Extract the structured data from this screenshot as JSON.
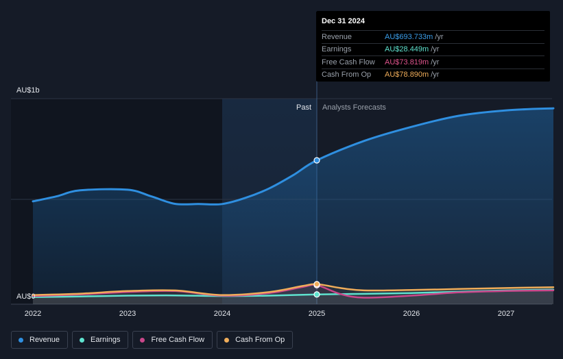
{
  "tooltip": {
    "date": "Dec 31 2024",
    "rows": [
      {
        "label": "Revenue",
        "value": "AU$693.733m",
        "unit": "/yr",
        "color": "#3b9eea"
      },
      {
        "label": "Earnings",
        "value": "AU$28.449m",
        "unit": "/yr",
        "color": "#5fe3cf"
      },
      {
        "label": "Free Cash Flow",
        "value": "AU$73.819m",
        "unit": "/yr",
        "color": "#e0548d"
      },
      {
        "label": "Cash From Op",
        "value": "AU$78.890m",
        "unit": "/yr",
        "color": "#f0ad5a"
      }
    ]
  },
  "regions": {
    "past": "Past",
    "forecast": "Analysts Forecasts"
  },
  "legend": [
    {
      "label": "Revenue",
      "color": "#2f8fe0"
    },
    {
      "label": "Earnings",
      "color": "#5fe3cf"
    },
    {
      "label": "Free Cash Flow",
      "color": "#c9478a"
    },
    {
      "label": "Cash From Op",
      "color": "#f0ad5a"
    }
  ],
  "chart_data": {
    "type": "line",
    "x_ticks": [
      "2022",
      "2023",
      "2024",
      "2025",
      "2026",
      "2027"
    ],
    "y_ticks": [
      "AU$0",
      "AU$1b"
    ],
    "ylim": [
      0,
      1000
    ],
    "xlim": [
      2022.0,
      2027.5
    ],
    "past_end": 2025.0,
    "shaded_start": 2024.0,
    "series": [
      {
        "name": "Revenue",
        "color": "#2f8fe0",
        "fill": true,
        "points": [
          [
            2022.0,
            490
          ],
          [
            2022.25,
            515
          ],
          [
            2022.5,
            545
          ],
          [
            2023.0,
            548
          ],
          [
            2023.25,
            515
          ],
          [
            2023.5,
            478
          ],
          [
            2023.75,
            477
          ],
          [
            2024.0,
            477
          ],
          [
            2024.25,
            508
          ],
          [
            2024.5,
            555
          ],
          [
            2024.75,
            620
          ],
          [
            2025.0,
            694
          ],
          [
            2025.5,
            790
          ],
          [
            2026.0,
            860
          ],
          [
            2026.5,
            915
          ],
          [
            2027.0,
            942
          ],
          [
            2027.5,
            952
          ]
        ]
      },
      {
        "name": "Earnings",
        "color": "#5fe3cf",
        "fill": false,
        "points": [
          [
            2022.0,
            15
          ],
          [
            2022.5,
            18
          ],
          [
            2023.0,
            22
          ],
          [
            2023.5,
            23
          ],
          [
            2024.0,
            20
          ],
          [
            2024.5,
            22
          ],
          [
            2025.0,
            28
          ],
          [
            2025.5,
            31
          ],
          [
            2026.0,
            35
          ],
          [
            2026.5,
            42
          ],
          [
            2027.0,
            48
          ],
          [
            2027.5,
            52
          ]
        ]
      },
      {
        "name": "Free Cash Flow",
        "color": "#c9478a",
        "fill": false,
        "points": [
          [
            2022.0,
            20
          ],
          [
            2022.5,
            28
          ],
          [
            2023.0,
            40
          ],
          [
            2023.5,
            45
          ],
          [
            2024.0,
            22
          ],
          [
            2024.5,
            35
          ],
          [
            2024.85,
            65
          ],
          [
            2025.0,
            74
          ],
          [
            2025.25,
            30
          ],
          [
            2025.5,
            12
          ],
          [
            2026.0,
            22
          ],
          [
            2026.5,
            38
          ],
          [
            2027.0,
            45
          ],
          [
            2027.5,
            48
          ]
        ]
      },
      {
        "name": "Cash From Op",
        "color": "#f0ad5a",
        "fill": false,
        "points": [
          [
            2022.0,
            25
          ],
          [
            2022.5,
            32
          ],
          [
            2023.0,
            45
          ],
          [
            2023.5,
            48
          ],
          [
            2024.0,
            25
          ],
          [
            2024.5,
            40
          ],
          [
            2024.85,
            70
          ],
          [
            2025.0,
            79
          ],
          [
            2025.25,
            60
          ],
          [
            2025.5,
            48
          ],
          [
            2026.0,
            50
          ],
          [
            2026.5,
            55
          ],
          [
            2027.0,
            60
          ],
          [
            2027.5,
            64
          ]
        ]
      }
    ]
  }
}
